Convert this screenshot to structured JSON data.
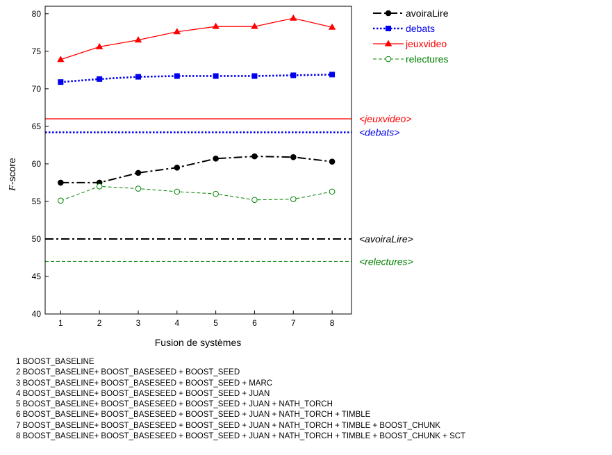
{
  "chart_data": {
    "type": "line",
    "title": "",
    "xlabel": "Fusion de systèmes",
    "ylabel_italic": "F",
    "ylabel_rest": "-score",
    "x": [
      1,
      2,
      3,
      4,
      5,
      6,
      7,
      8
    ],
    "xlim": [
      0.6,
      8.5
    ],
    "ylim": [
      40,
      81
    ],
    "yticks": [
      40,
      45,
      50,
      55,
      60,
      65,
      70,
      75,
      80
    ],
    "grid": false,
    "legend_position": "top-right, outside plot",
    "series": [
      {
        "name": "avoiraLire",
        "color": "#000000",
        "marker": "filled-circle",
        "linestyle": "dash-dot",
        "values": [
          57.5,
          57.5,
          58.8,
          59.5,
          60.7,
          61.0,
          60.9,
          60.3
        ]
      },
      {
        "name": "debats",
        "color": "#0000ee",
        "marker": "filled-square",
        "linestyle": "dotted",
        "values": [
          70.9,
          71.3,
          71.6,
          71.7,
          71.7,
          71.7,
          71.8,
          71.9
        ]
      },
      {
        "name": "jeuxvideo",
        "color": "#ff0000",
        "marker": "filled-triangle",
        "linestyle": "solid",
        "values": [
          73.9,
          75.6,
          76.5,
          77.6,
          78.3,
          78.3,
          79.4,
          78.2
        ]
      },
      {
        "name": "relectures",
        "color": "#008000",
        "marker": "open-circle",
        "linestyle": "dashed",
        "values": [
          55.1,
          57.0,
          56.7,
          56.3,
          56.0,
          55.2,
          55.3,
          56.3
        ]
      }
    ],
    "reference_lines": [
      {
        "label": "<jeuxvideo>",
        "value": 66.0,
        "color": "#ff0000",
        "linestyle": "solid"
      },
      {
        "label": "<debats>",
        "value": 64.2,
        "color": "#0000ee",
        "linestyle": "dotted"
      },
      {
        "label": "<avoiraLire>",
        "value": 50.0,
        "color": "#000000",
        "linestyle": "dash-dot"
      },
      {
        "label": "<relectures>",
        "value": 47.0,
        "color": "#008000",
        "linestyle": "dashed"
      }
    ]
  },
  "notes": [
    "1 BOOST_BASELINE",
    "2 BOOST_BASELINE+ BOOST_BASESEED + BOOST_SEED",
    "3 BOOST_BASELINE+ BOOST_BASESEED + BOOST_SEED + MARC",
    "4 BOOST_BASELINE+ BOOST_BASESEED + BOOST_SEED + JUAN",
    "5 BOOST_BASELINE+ BOOST_BASESEED + BOOST_SEED + JUAN + NATH_TORCH",
    "6 BOOST_BASELINE+ BOOST_BASESEED + BOOST_SEED + JUAN + NATH_TORCH + TIMBLE",
    "7 BOOST_BASELINE+ BOOST_BASESEED + BOOST_SEED + JUAN + NATH_TORCH + TIMBLE + BOOST_CHUNK",
    "8 BOOST_BASELINE+ BOOST_BASESEED + BOOST_SEED + JUAN + NATH_TORCH + TIMBLE + BOOST_CHUNK + SCT"
  ]
}
